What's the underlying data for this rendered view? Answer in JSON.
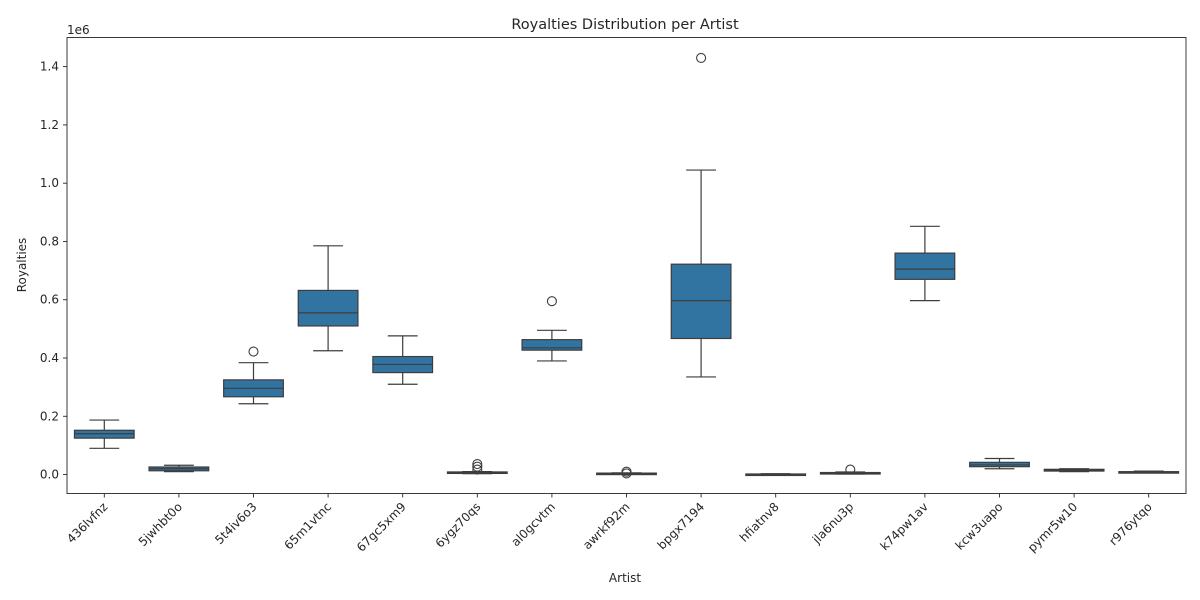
{
  "chart_data": {
    "type": "box",
    "title": "Royalties Distribution per Artist",
    "xlabel": "Artist",
    "ylabel": "Royalties",
    "y_offset_label": "1e6",
    "ylim": [
      -0.065,
      1.5
    ],
    "yticks": [
      0.0,
      0.2,
      0.4,
      0.6,
      0.8,
      1.0,
      1.2,
      1.4
    ],
    "ytick_labels": [
      "0.0",
      "0.2",
      "0.4",
      "0.6",
      "0.8",
      "1.0",
      "1.2",
      "1.4"
    ],
    "grid": false,
    "box_color": "#3274a1",
    "line_color": "#3d3d3d",
    "categories": [
      "436lvfnz",
      "5jwhbt0o",
      "5t4iv6o3",
      "65m1vtnc",
      "67gc5xm9",
      "6ygz70qs",
      "al0gcvtm",
      "awrkf92m",
      "bpgx7194",
      "hfiatnv8",
      "jla6nu3p",
      "k74pw1av",
      "kcw3uapo",
      "pymr5w10",
      "r976ytqo"
    ],
    "boxes": [
      {
        "whislo": 0.09,
        "q1": 0.125,
        "med": 0.14,
        "q3": 0.152,
        "whishi": 0.187,
        "fliers": []
      },
      {
        "whislo": 0.01,
        "q1": 0.013,
        "med": 0.02,
        "q3": 0.026,
        "whishi": 0.032,
        "fliers": []
      },
      {
        "whislo": 0.243,
        "q1": 0.267,
        "med": 0.296,
        "q3": 0.325,
        "whishi": 0.384,
        "fliers": [
          0.422
        ]
      },
      {
        "whislo": 0.425,
        "q1": 0.51,
        "med": 0.555,
        "q3": 0.632,
        "whishi": 0.785,
        "fliers": []
      },
      {
        "whislo": 0.31,
        "q1": 0.35,
        "med": 0.378,
        "q3": 0.405,
        "whishi": 0.476,
        "fliers": []
      },
      {
        "whislo": 0.003,
        "q1": 0.005,
        "med": 0.007,
        "q3": 0.009,
        "whishi": 0.01,
        "fliers": [
          0.036,
          0.027,
          0.017
        ]
      },
      {
        "whislo": 0.39,
        "q1": 0.427,
        "med": 0.435,
        "q3": 0.463,
        "whishi": 0.495,
        "fliers": [
          0.595
        ]
      },
      {
        "whislo": 0.001,
        "q1": 0.002,
        "med": 0.003,
        "q3": 0.005,
        "whishi": 0.006,
        "fliers": [
          0.01,
          0.004
        ]
      },
      {
        "whislo": 0.335,
        "q1": 0.467,
        "med": 0.597,
        "q3": 0.722,
        "whishi": 1.045,
        "fliers": [
          1.43
        ]
      },
      {
        "whislo": 0.0,
        "q1": 0.001,
        "med": 0.001,
        "q3": 0.002,
        "whishi": 0.003,
        "fliers": []
      },
      {
        "whislo": 0.002,
        "q1": 0.003,
        "med": 0.005,
        "q3": 0.007,
        "whishi": 0.009,
        "fliers": [
          0.017
        ]
      },
      {
        "whislo": 0.597,
        "q1": 0.67,
        "med": 0.705,
        "q3": 0.76,
        "whishi": 0.852,
        "fliers": []
      },
      {
        "whislo": 0.02,
        "q1": 0.027,
        "med": 0.033,
        "q3": 0.042,
        "whishi": 0.055,
        "fliers": []
      },
      {
        "whislo": 0.01,
        "q1": 0.012,
        "med": 0.015,
        "q3": 0.018,
        "whishi": 0.02,
        "fliers": []
      },
      {
        "whislo": 0.006,
        "q1": 0.008,
        "med": 0.009,
        "q3": 0.01,
        "whishi": 0.012,
        "fliers": []
      }
    ]
  }
}
